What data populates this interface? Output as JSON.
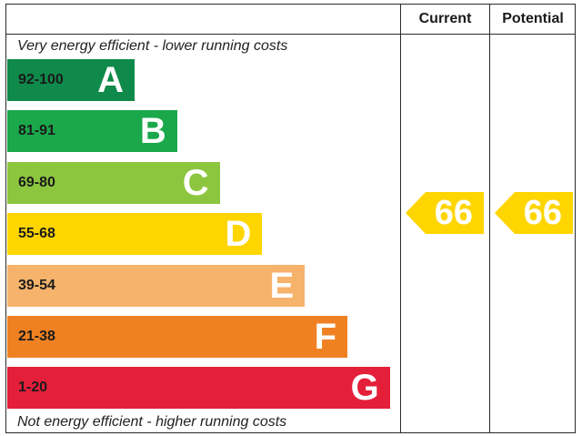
{
  "chart_data": {
    "type": "bar",
    "header": {
      "current_label": "Current",
      "potential_label": "Potential"
    },
    "top_caption": "Very energy efficient - lower running costs",
    "bottom_caption": "Not energy efficient - higher running costs",
    "bands": [
      {
        "range": "92-100",
        "letter": "A",
        "color": "#0f8a4a"
      },
      {
        "range": "81-91",
        "letter": "B",
        "color": "#1aa84b"
      },
      {
        "range": "69-80",
        "letter": "C",
        "color": "#8cc63f"
      },
      {
        "range": "55-68",
        "letter": "D",
        "color": "#ffd500"
      },
      {
        "range": "39-54",
        "letter": "E",
        "color": "#f6b36b"
      },
      {
        "range": "21-38",
        "letter": "F",
        "color": "#f08122"
      },
      {
        "range": "1-20",
        "letter": "G",
        "color": "#e41f3a"
      }
    ],
    "ratings": {
      "current": {
        "value": "66",
        "band": "D",
        "color": "#ffd500"
      },
      "potential": {
        "value": "66",
        "band": "D",
        "color": "#ffd500"
      }
    }
  }
}
